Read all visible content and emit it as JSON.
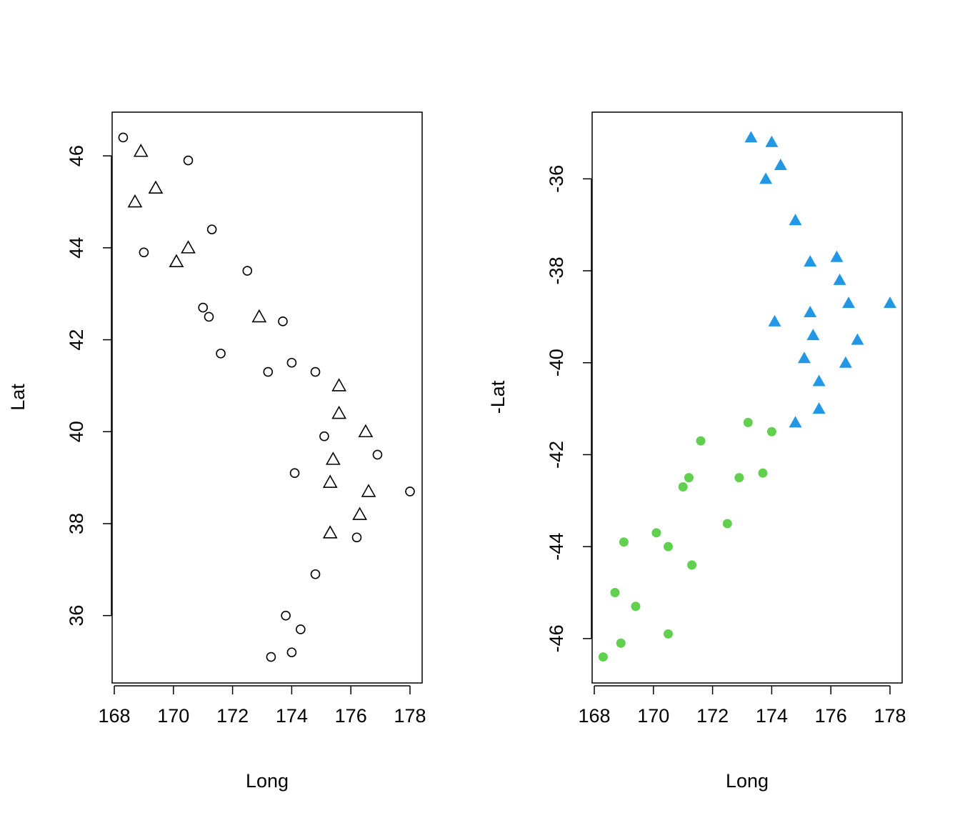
{
  "chart_data": [
    {
      "type": "scatter",
      "title": "",
      "xlabel": "Long",
      "ylabel": "Lat",
      "xlim": [
        168,
        178
      ],
      "ylim": [
        35,
        46.5
      ],
      "x_ticks": [
        168,
        170,
        172,
        174,
        176,
        178
      ],
      "y_ticks": [
        36,
        38,
        40,
        42,
        44,
        46
      ],
      "grid": false,
      "legend": "none",
      "series": [
        {
          "marker": "open-circle",
          "color": "#000000",
          "x": [
            168.3,
            170.5,
            169.0,
            171.3,
            172.5,
            171.0,
            171.2,
            173.7,
            171.6,
            174.0,
            174.8,
            173.2,
            175.1,
            176.9,
            174.1,
            178.0,
            176.2,
            174.8,
            173.8,
            174.3,
            174.0,
            173.3
          ],
          "y": [
            46.4,
            45.9,
            43.9,
            44.4,
            43.5,
            42.7,
            42.5,
            42.4,
            41.7,
            41.5,
            41.3,
            41.3,
            39.9,
            39.5,
            39.1,
            38.7,
            37.7,
            36.9,
            36.0,
            35.7,
            35.2,
            35.1
          ]
        },
        {
          "marker": "open-triangle",
          "color": "#000000",
          "x": [
            168.9,
            169.4,
            168.7,
            170.5,
            170.1,
            172.9,
            175.6,
            175.6,
            176.5,
            175.4,
            175.3,
            176.6,
            176.3,
            175.3
          ],
          "y": [
            46.1,
            45.3,
            45.0,
            44.0,
            43.7,
            42.5,
            41.0,
            40.4,
            40.0,
            39.4,
            38.9,
            38.7,
            38.2,
            37.8
          ]
        }
      ]
    },
    {
      "type": "scatter",
      "title": "",
      "xlabel": "Long",
      "ylabel": "-Lat",
      "xlim": [
        168,
        178
      ],
      "ylim": [
        -46.5,
        -35
      ],
      "x_ticks": [
        168,
        170,
        172,
        174,
        176,
        178
      ],
      "y_ticks": [
        -46,
        -44,
        -42,
        -40,
        -38,
        -36
      ],
      "grid": false,
      "legend": "none",
      "series": [
        {
          "marker": "filled-circle",
          "color": "#61D04F",
          "x": [
            168.3,
            168.9,
            170.5,
            169.4,
            168.7,
            171.3,
            170.5,
            169.0,
            170.1,
            172.5,
            171.0,
            171.2,
            172.9,
            173.7,
            171.6,
            174.0,
            173.2
          ],
          "y": [
            -46.4,
            -46.1,
            -45.9,
            -45.3,
            -45.0,
            -44.4,
            -44.0,
            -43.9,
            -43.7,
            -43.5,
            -42.7,
            -42.5,
            -42.5,
            -42.4,
            -41.7,
            -41.5,
            -41.3
          ]
        },
        {
          "marker": "filled-triangle",
          "color": "#2297E6",
          "x": [
            174.8,
            175.6,
            175.6,
            176.5,
            175.1,
            176.9,
            175.4,
            174.1,
            175.3,
            178.0,
            176.6,
            176.3,
            175.3,
            176.2,
            174.8,
            173.8,
            174.3,
            174.0,
            173.3
          ],
          "y": [
            -41.3,
            -41.0,
            -40.4,
            -40.0,
            -39.9,
            -39.5,
            -39.4,
            -39.1,
            -38.9,
            -38.7,
            -38.7,
            -38.2,
            -37.8,
            -37.7,
            -36.9,
            -36.0,
            -35.7,
            -35.2,
            -35.1
          ]
        }
      ]
    }
  ]
}
